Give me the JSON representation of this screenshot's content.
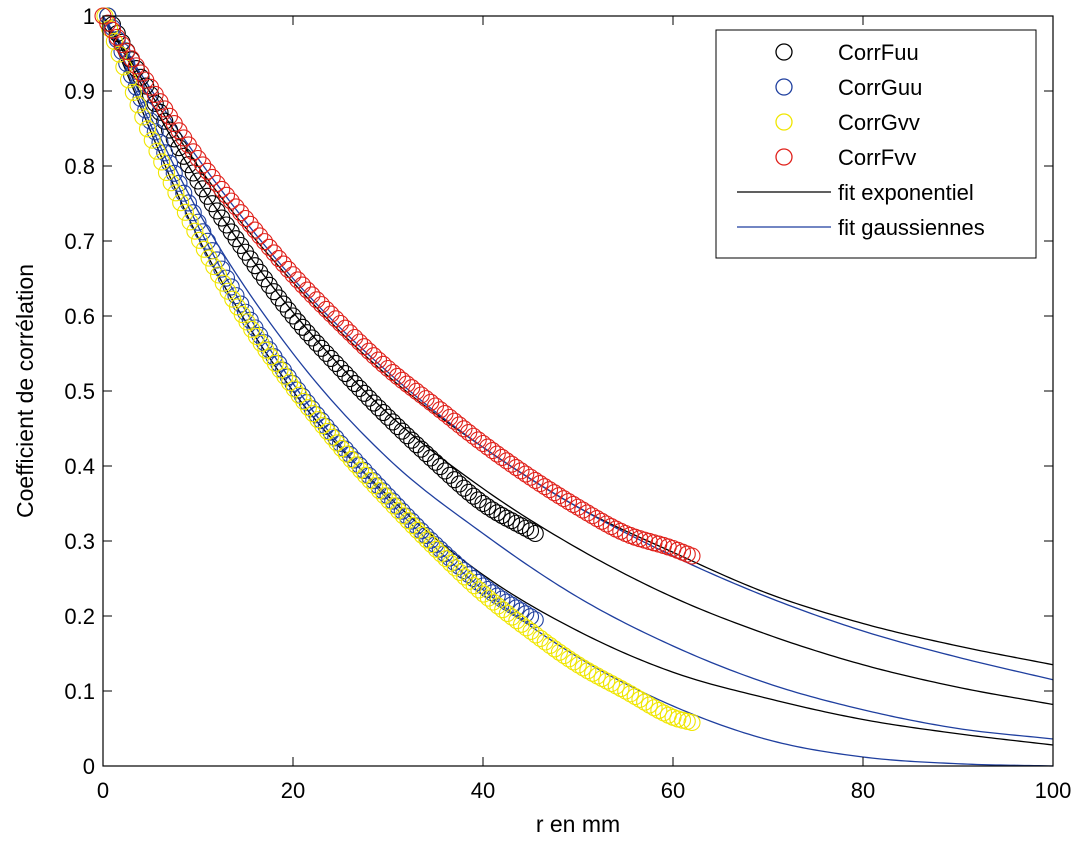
{
  "chart_data": {
    "type": "scatter",
    "title": "",
    "xlabel": "r en mm",
    "ylabel": "Coefficient de corrélation",
    "xlim": [
      0,
      100
    ],
    "ylim": [
      0,
      1
    ],
    "xticks": [
      0,
      20,
      40,
      60,
      80,
      100
    ],
    "yticks": [
      0,
      0.1,
      0.2,
      0.3,
      0.4,
      0.5,
      0.6,
      0.7,
      0.8,
      0.9,
      1
    ],
    "xtick_labels": [
      "0",
      "20",
      "40",
      "60",
      "80",
      "100"
    ],
    "ytick_labels": [
      "0",
      "0.1",
      "0.2",
      "0.3",
      "0.4",
      "0.5",
      "0.6",
      "0.7",
      "0.8",
      "0.9",
      "1"
    ],
    "grid": false,
    "legend_position": "top-right",
    "legend_entries": [
      "CorrFuu",
      "CorrGuu",
      "CorrGvv",
      "CorrFvv",
      "fit exponentiel",
      "fit gaussiennes"
    ],
    "scatter_series": [
      {
        "name": "CorrFuu",
        "color": "#000000",
        "x": [
          0.5,
          5,
          10,
          15,
          20,
          25,
          30,
          35,
          40,
          45.5
        ],
        "y": [
          1.0,
          0.895,
          0.78,
          0.685,
          0.6,
          0.53,
          0.465,
          0.405,
          0.35,
          0.31
        ]
      },
      {
        "name": "CorrGuu",
        "color": "#1f3f9f",
        "x": [
          0.5,
          5,
          10,
          15,
          20,
          25,
          30,
          35,
          40,
          45.5
        ],
        "y": [
          1.0,
          0.86,
          0.725,
          0.605,
          0.51,
          0.43,
          0.36,
          0.295,
          0.24,
          0.195
        ]
      },
      {
        "name": "CorrGvv",
        "color": "#f0e600",
        "x": [
          0.2,
          5,
          10,
          15,
          20,
          25,
          30,
          35,
          40,
          45,
          50,
          55,
          60,
          62
        ],
        "y": [
          1.0,
          0.84,
          0.705,
          0.595,
          0.505,
          0.425,
          0.355,
          0.29,
          0.23,
          0.18,
          0.135,
          0.1,
          0.065,
          0.058
        ]
      },
      {
        "name": "CorrFvv",
        "color": "#e0201a",
        "x": [
          0,
          5,
          10,
          15,
          20,
          25,
          30,
          35,
          40,
          45,
          50,
          55,
          60,
          62
        ],
        "y": [
          1.0,
          0.905,
          0.81,
          0.73,
          0.655,
          0.59,
          0.53,
          0.48,
          0.43,
          0.385,
          0.345,
          0.31,
          0.29,
          0.28
        ]
      }
    ],
    "fit_series": [
      {
        "name": "fit exponentiel",
        "color": "#000000",
        "x": [
          0,
          10,
          20,
          30,
          40,
          50,
          60,
          70,
          80,
          90,
          100
        ],
        "y": [
          1.0,
          0.8,
          0.645,
          0.52,
          0.425,
          0.345,
          0.285,
          0.23,
          0.19,
          0.16,
          0.135
        ]
      },
      {
        "name": "fit exponentiel",
        "color": "#000000",
        "x": [
          0,
          10,
          20,
          30,
          40,
          50,
          60,
          70,
          80,
          90,
          100
        ],
        "y": [
          1.0,
          0.78,
          0.605,
          0.47,
          0.37,
          0.29,
          0.225,
          0.175,
          0.135,
          0.105,
          0.082
        ]
      },
      {
        "name": "fit exponentiel",
        "color": "#000000",
        "x": [
          0,
          10,
          20,
          30,
          40,
          50,
          60,
          70,
          80,
          90,
          100
        ],
        "y": [
          1.0,
          0.705,
          0.5,
          0.36,
          0.255,
          0.18,
          0.125,
          0.09,
          0.062,
          0.043,
          0.028
        ]
      },
      {
        "name": "fit gaussiennes",
        "color": "#1f3f9f",
        "x": [
          0,
          10,
          20,
          30,
          40,
          50,
          60,
          70,
          80,
          90,
          100
        ],
        "y": [
          1.0,
          0.81,
          0.65,
          0.525,
          0.425,
          0.345,
          0.28,
          0.225,
          0.18,
          0.145,
          0.115
        ]
      },
      {
        "name": "fit gaussiennes",
        "color": "#1f3f9f",
        "x": [
          0,
          10,
          20,
          30,
          40,
          50,
          60,
          70,
          80,
          90,
          100
        ],
        "y": [
          1.0,
          0.74,
          0.55,
          0.41,
          0.31,
          0.225,
          0.16,
          0.11,
          0.075,
          0.05,
          0.036
        ]
      },
      {
        "name": "fit gaussiennes",
        "color": "#1f3f9f",
        "x": [
          0,
          10,
          20,
          30,
          40,
          50,
          60,
          70,
          80,
          90,
          100
        ],
        "y": [
          1.0,
          0.72,
          0.51,
          0.355,
          0.235,
          0.145,
          0.08,
          0.035,
          0.012,
          0.003,
          0.0
        ]
      }
    ]
  }
}
